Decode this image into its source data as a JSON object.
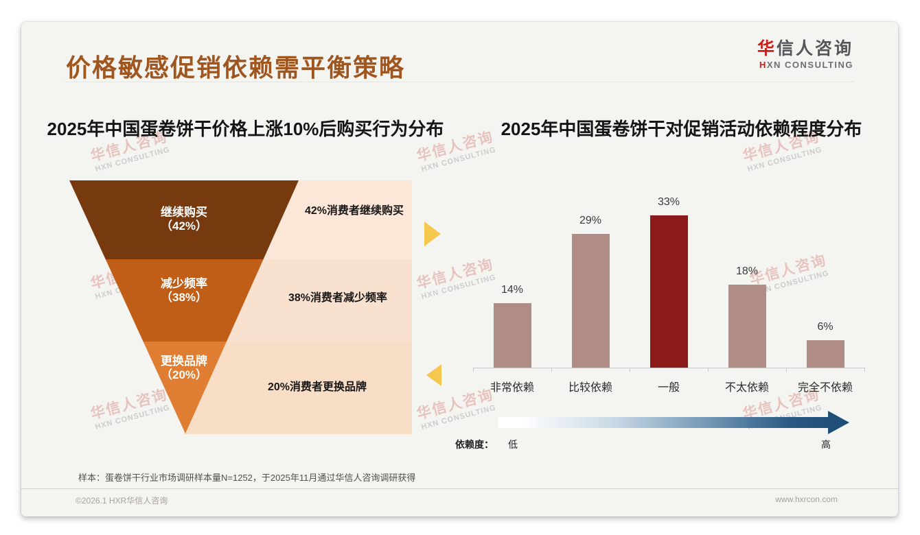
{
  "page": {
    "title": "价格敏感促销依赖需平衡策略",
    "title_color": "#a0561f",
    "logo": {
      "zh_first": "华",
      "zh_rest": "信人咨询",
      "en_first": "H",
      "en_rest": "XN CONSULTING"
    },
    "watermark": {
      "line1": "华信人咨询",
      "line2": "HXN CONSULTING"
    },
    "footer": {
      "sample_note": "样本：蛋卷饼干行业市场调研样本量N=1252，于2025年11月通过华信人咨询调研获得",
      "copyright": "©2026.1 HXR华信人咨询",
      "website": "www.hxrcon.com"
    },
    "accent_marker_color": "#f6c74f"
  },
  "chart_data": [
    {
      "type": "funnel",
      "title": "2025年中国蛋卷饼干价格上涨10%后购买行为分布",
      "segments": [
        {
          "label": "继续购买",
          "value": 42,
          "value_label": "（42%）",
          "annotation": "42%消费者继续购买",
          "color": "#77390e",
          "panel_color": "#fbe6d8"
        },
        {
          "label": "减少频率",
          "value": 38,
          "value_label": "（38%）",
          "annotation": "38%消费者减少频率",
          "color": "#c05d17",
          "panel_color": "#f9e1d0"
        },
        {
          "label": "更换品牌",
          "value": 20,
          "value_label": "（20%）",
          "annotation": "20%消费者更换品牌",
          "color": "#df7e33",
          "panel_color": "#f8ddc7"
        }
      ]
    },
    {
      "type": "bar",
      "title": "2025年中国蛋卷饼干对促销活动依赖程度分布",
      "categories": [
        "非常依赖",
        "比较依赖",
        "一般",
        "不太依赖",
        "完全不依赖"
      ],
      "values": [
        14,
        29,
        33,
        18,
        6
      ],
      "value_labels": [
        "14%",
        "29%",
        "33%",
        "18%",
        "6%"
      ],
      "bar_color": "#af8d84",
      "highlight_index": 2,
      "highlight_color": "#8b1a1a",
      "ylim": [
        0,
        35
      ],
      "grid": false,
      "legend_axis": {
        "label": "依赖度：",
        "low": "低",
        "high": "高",
        "gradient_start": "#ffffff",
        "gradient_end": "#1f4e79"
      }
    }
  ]
}
